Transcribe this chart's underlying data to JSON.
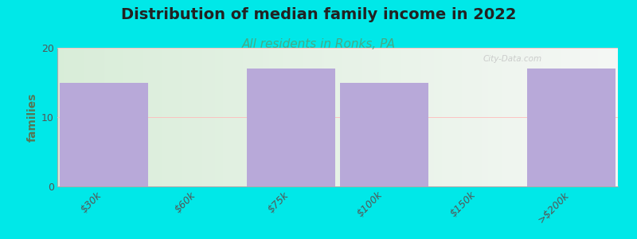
{
  "categories": [
    "$30k",
    "$60k",
    "$75k",
    "$100k",
    "$150k",
    ">$200k"
  ],
  "values": [
    15,
    0,
    17,
    15,
    0,
    17
  ],
  "bar_color": "#b8a9d9",
  "bg_color": "#00e8e8",
  "plot_bg_gradient_left": "#ddeedd",
  "plot_bg_gradient_right": "#f0f0f0",
  "title": "Distribution of median family income in 2022",
  "subtitle": "All residents in Ronks, PA",
  "subtitle_color": "#44aa88",
  "ylabel": "families",
  "ylim": [
    0,
    20
  ],
  "yticks": [
    0,
    10,
    20
  ],
  "title_fontsize": 14,
  "subtitle_fontsize": 11,
  "ylabel_fontsize": 10,
  "tick_fontsize": 9,
  "watermark": "City-Data.com",
  "bar_width": 0.95,
  "grid_color": "#ffbbbb",
  "ylabel_color": "#557755"
}
